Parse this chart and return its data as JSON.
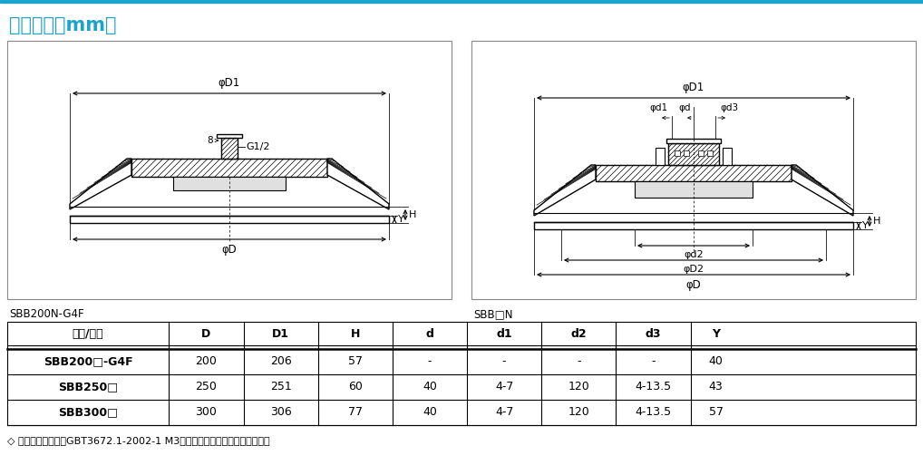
{
  "title": "尺寸规格（mm）",
  "title_color": "#1aa3cc",
  "top_line_color": "#1aa3cc",
  "left_label": "SBB200N-G4F",
  "right_label": "SBB□N",
  "table_headers": [
    "型号/尺寸",
    "D",
    "D1",
    "H",
    "d",
    "d1",
    "d2",
    "d3",
    "Y"
  ],
  "table_rows": [
    [
      "SBB200□-G4F",
      "200",
      "206",
      "57",
      "-",
      "-",
      "-",
      "-",
      "40"
    ],
    [
      "SBB250□",
      "250",
      "251",
      "60",
      "40",
      "4-7",
      "120",
      "4-13.5",
      "43"
    ],
    [
      "SBB300□",
      "300",
      "306",
      "77",
      "40",
      "4-7",
      "120",
      "4-13.5",
      "57"
    ]
  ],
  "note": "◇ 注：尺寸公差符合GBT3672.1-2002-1 M3橡胶制品尺寸公差标准中的要求。",
  "bg_color": "#ffffff"
}
